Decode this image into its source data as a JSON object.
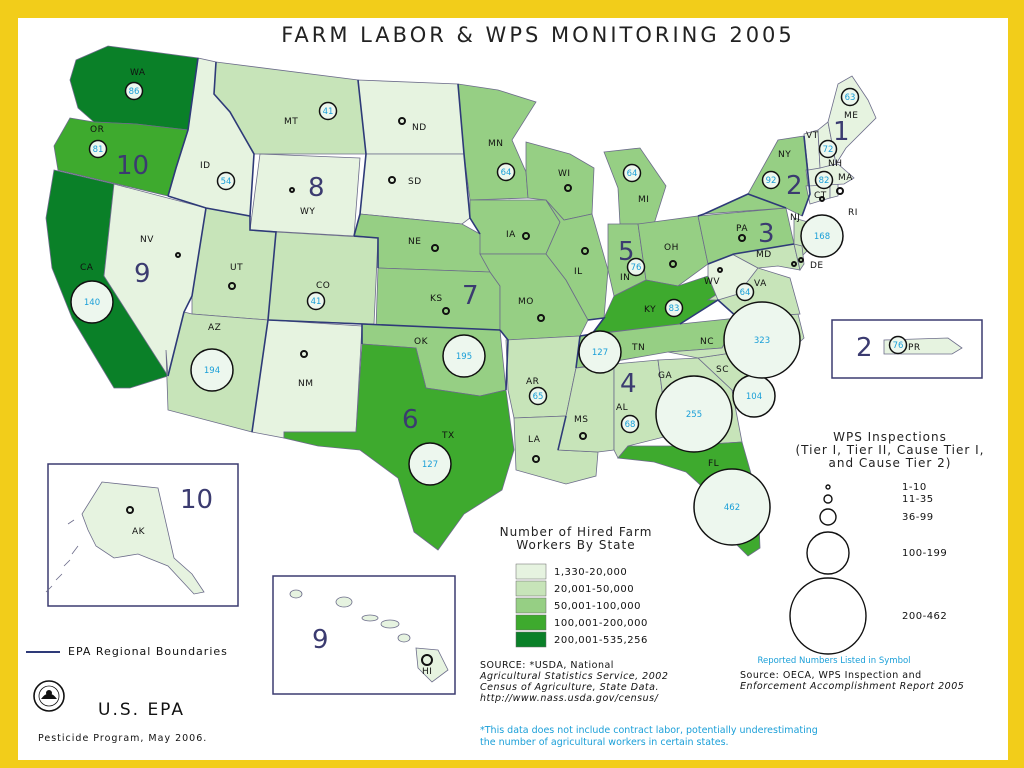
{
  "title": "FARM LABOR & WPS MONITORING 2005",
  "colors": {
    "border": "#f2cd1a",
    "c1": "#e6f3e0",
    "c2": "#c7e4b9",
    "c3": "#96cf84",
    "c4": "#3eaa2e",
    "c5": "#0a8028",
    "region_line": "#2e3a78",
    "number": "#1a9fd8"
  },
  "states": [
    {
      "abbr": "WA"
    },
    {
      "abbr": "OR"
    },
    {
      "abbr": "CA"
    },
    {
      "abbr": "ID"
    },
    {
      "abbr": "NV"
    },
    {
      "abbr": "MT"
    },
    {
      "abbr": "WY"
    },
    {
      "abbr": "UT"
    },
    {
      "abbr": "AZ"
    },
    {
      "abbr": "CO"
    },
    {
      "abbr": "NM"
    },
    {
      "abbr": "ND"
    },
    {
      "abbr": "SD"
    },
    {
      "abbr": "NE"
    },
    {
      "abbr": "KS"
    },
    {
      "abbr": "OK"
    },
    {
      "abbr": "TX"
    },
    {
      "abbr": "MN"
    },
    {
      "abbr": "IA"
    },
    {
      "abbr": "MO"
    },
    {
      "abbr": "AR"
    },
    {
      "abbr": "LA"
    },
    {
      "abbr": "WI"
    },
    {
      "abbr": "IL"
    },
    {
      "abbr": "MI"
    },
    {
      "abbr": "IN"
    },
    {
      "abbr": "OH"
    },
    {
      "abbr": "KY"
    },
    {
      "abbr": "TN"
    },
    {
      "abbr": "MS"
    },
    {
      "abbr": "AL"
    },
    {
      "abbr": "GA"
    },
    {
      "abbr": "FL"
    },
    {
      "abbr": "SC"
    },
    {
      "abbr": "NC"
    },
    {
      "abbr": "VA"
    },
    {
      "abbr": "WV"
    },
    {
      "abbr": "PA"
    },
    {
      "abbr": "NY"
    },
    {
      "abbr": "NJ"
    },
    {
      "abbr": "MD"
    },
    {
      "abbr": "DE"
    },
    {
      "abbr": "CT"
    },
    {
      "abbr": "RI"
    },
    {
      "abbr": "MA"
    },
    {
      "abbr": "VT"
    },
    {
      "abbr": "NH"
    },
    {
      "abbr": "ME"
    },
    {
      "abbr": "AK"
    },
    {
      "abbr": "HI"
    },
    {
      "abbr": "PR"
    }
  ],
  "inspections": [
    {
      "state": "WA",
      "value": 86
    },
    {
      "state": "OR",
      "value": 81
    },
    {
      "state": "CA",
      "value": 140
    },
    {
      "state": "ID",
      "value": 54
    },
    {
      "state": "MT",
      "value": 41
    },
    {
      "state": "CO",
      "value": 41
    },
    {
      "state": "AZ",
      "value": 194
    },
    {
      "state": "OK",
      "value": 195
    },
    {
      "state": "TX",
      "value": 127
    },
    {
      "state": "MN",
      "value": 64
    },
    {
      "state": "AR",
      "value": 65
    },
    {
      "state": "MI",
      "value": 64
    },
    {
      "state": "IN",
      "value": 76
    },
    {
      "state": "KY",
      "value": 83
    },
    {
      "state": "TN",
      "value": 127
    },
    {
      "state": "AL",
      "value": 68
    },
    {
      "state": "GA",
      "value": 255
    },
    {
      "state": "FL",
      "value": 462
    },
    {
      "state": "SC",
      "value": 104
    },
    {
      "state": "NC",
      "value": 323
    },
    {
      "state": "VA",
      "value": 64
    },
    {
      "state": "NY",
      "value": 92
    },
    {
      "state": "NJ",
      "value": 168
    },
    {
      "state": "ME",
      "value": 63
    },
    {
      "state": "VT",
      "value": 72
    },
    {
      "state": "MA",
      "value": 82
    },
    {
      "state": "PR",
      "value": 76
    }
  ],
  "regions": [
    "1",
    "2",
    "3",
    "4",
    "5",
    "6",
    "7",
    "8",
    "9",
    "10",
    "2",
    "9",
    "10"
  ],
  "hired_legend": {
    "title_lines": [
      "Number of Hired Farm",
      "Workers By State"
    ],
    "items": [
      {
        "label": "1,330-20,000",
        "color": "#e6f3e0"
      },
      {
        "label": "20,001-50,000",
        "color": "#c7e4b9"
      },
      {
        "label": "50,001-100,000",
        "color": "#96cf84"
      },
      {
        "label": "100,001-200,000",
        "color": "#3eaa2e"
      },
      {
        "label": "200,001-535,256",
        "color": "#0a8028"
      }
    ]
  },
  "wps_legend": {
    "title_lines": [
      "WPS Inspections",
      "(Tier I, Tier II, Cause Tier I,",
      "and Cause Tier 2)"
    ],
    "items": [
      "1-10",
      "11-35",
      "36-99",
      "100-199",
      "200-462"
    ],
    "note": "Reported Numbers Listed in Symbol"
  },
  "boundary_legend": "EPA Regional Boundaries",
  "source_left": {
    "lines": [
      "SOURCE: *USDA, National",
      "Agricultural Statistics Service, 2002",
      "Census of Agriculture, State Data.",
      "http://www.nass.usda.gov/census/"
    ]
  },
  "source_right": {
    "lines": [
      "Source: OECA, WPS Inspection and",
      "Enforcement Accomplishment Report 2005"
    ]
  },
  "footnote_lines": [
    "*This data does not include contract labor, potentially underestimating",
    "the number of agricultural workers in certain states."
  ],
  "agency": "U.S. EPA",
  "program": "Pesticide Program, May 2006."
}
